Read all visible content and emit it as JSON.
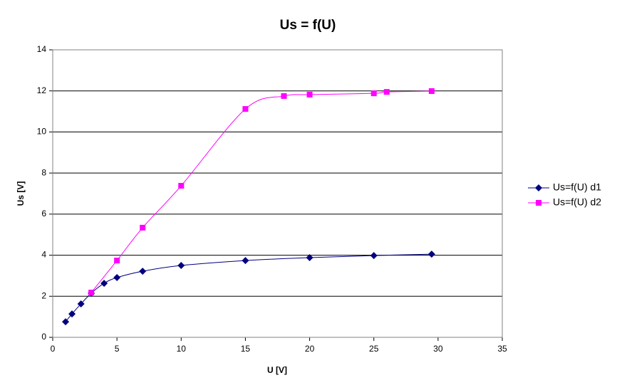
{
  "chart_data": {
    "type": "scatter",
    "title": "Us = f(U)",
    "x_label": "U [V]",
    "y_label": "Us [V]",
    "series": [
      {
        "name": "Us=f(U) d1",
        "color": "#000080",
        "marker": "diamond",
        "x": [
          1,
          1.5,
          2.2,
          3,
          4,
          5,
          7,
          10,
          15,
          20,
          25,
          29.5
        ],
        "values": [
          0.76,
          1.14,
          1.63,
          2.15,
          2.63,
          2.91,
          3.22,
          3.5,
          3.74,
          3.88,
          3.98,
          4.05
        ]
      },
      {
        "name": "Us=f(U) d2",
        "color": "#ff00ff",
        "marker": "square",
        "x": [
          3,
          5,
          7,
          10,
          15,
          18,
          20,
          25,
          26,
          29.5
        ],
        "values": [
          2.18,
          3.74,
          5.34,
          7.38,
          11.12,
          11.75,
          11.82,
          11.88,
          11.95,
          11.99
        ]
      }
    ],
    "xlim": [
      0,
      35
    ],
    "xticks": [
      0,
      5,
      10,
      15,
      20,
      25,
      30,
      35
    ],
    "ylim": [
      0,
      14
    ],
    "yticks": [
      0,
      2,
      4,
      6,
      8,
      10,
      12,
      14
    ],
    "grid": true,
    "legend": "right"
  }
}
